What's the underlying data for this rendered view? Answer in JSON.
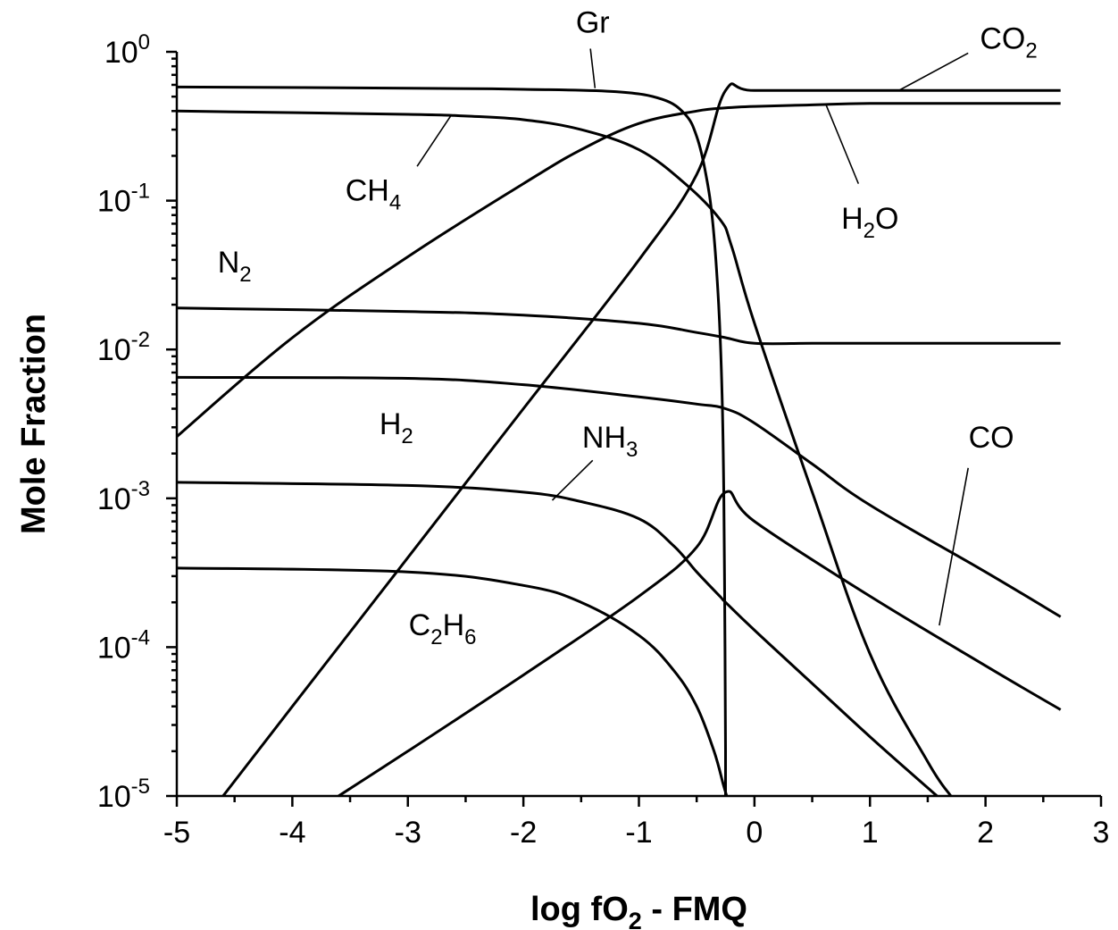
{
  "chart_data": {
    "type": "line",
    "xlabel": "log fO2 - FMQ",
    "xlabel_parts": {
      "pre": "log fO",
      "sub": "2",
      "post": " - FMQ"
    },
    "ylabel": "Mole Fraction",
    "xlim": [
      -5,
      3
    ],
    "ylim": [
      1e-05,
      1
    ],
    "yscale": "log",
    "grid": false,
    "x_ticks": [
      -5,
      -4,
      -3,
      -2,
      -1,
      0,
      1,
      2,
      3
    ],
    "x_tick_labels": [
      "-5",
      "-4",
      "-3",
      "-2",
      "-1",
      "0",
      "1",
      "2",
      "3"
    ],
    "y_ticks": [
      {
        "value": 1.0,
        "base": "10",
        "exp": "0"
      },
      {
        "value": 0.1,
        "base": "10",
        "exp": "-1"
      },
      {
        "value": 0.01,
        "base": "10",
        "exp": "-2"
      },
      {
        "value": 0.001,
        "base": "10",
        "exp": "-3"
      },
      {
        "value": 0.0001,
        "base": "10",
        "exp": "-4"
      },
      {
        "value": 1e-05,
        "base": "10",
        "exp": "-5"
      }
    ],
    "series": [
      {
        "name": "Gr",
        "label_parts": [
          {
            "t": "Gr",
            "sub": false
          }
        ],
        "x": [
          -5,
          -3,
          -2,
          -1.2,
          -0.8,
          -0.6,
          -0.5,
          -0.42,
          -0.36,
          -0.31,
          -0.28,
          -0.265,
          -0.255,
          -0.25,
          -0.25
        ],
        "y": [
          0.58,
          0.57,
          0.56,
          0.54,
          0.48,
          0.38,
          0.27,
          0.15,
          0.07,
          0.02,
          0.005,
          0.001,
          0.0001,
          2e-05,
          1e-05
        ]
      },
      {
        "name": "CO2",
        "label_parts": [
          {
            "t": "CO",
            "sub": false
          },
          {
            "t": "2",
            "sub": true
          }
        ],
        "x": [
          -4.6,
          -4,
          -3,
          -2,
          -1,
          -0.5,
          -0.25,
          0,
          1,
          2,
          2.65
        ],
        "y": [
          1e-05,
          4e-05,
          0.0004,
          0.004,
          0.04,
          0.15,
          0.55,
          0.55,
          0.55,
          0.55,
          0.55
        ]
      },
      {
        "name": "CH4",
        "label_parts": [
          {
            "t": "CH",
            "sub": false
          },
          {
            "t": "4",
            "sub": true
          }
        ],
        "x": [
          -5,
          -3,
          -2.5,
          -2,
          -1.5,
          -1,
          -0.6,
          -0.3,
          -0.2,
          0,
          0.5,
          1,
          1.5,
          1.7
        ],
        "y": [
          0.4,
          0.38,
          0.37,
          0.35,
          0.3,
          0.22,
          0.13,
          0.075,
          0.05,
          0.015,
          0.0011,
          9e-05,
          1.7e-05,
          1e-05
        ]
      },
      {
        "name": "H2O",
        "label_parts": [
          {
            "t": "H",
            "sub": false
          },
          {
            "t": "2",
            "sub": true
          },
          {
            "t": "O",
            "sub": false
          }
        ],
        "x": [
          -5,
          -4,
          -3,
          -2,
          -1.5,
          -1,
          -0.5,
          -0.25,
          0,
          0.5,
          1,
          2,
          2.65
        ],
        "y": [
          0.0026,
          0.012,
          0.042,
          0.13,
          0.22,
          0.33,
          0.4,
          0.42,
          0.43,
          0.44,
          0.45,
          0.45,
          0.45
        ]
      },
      {
        "name": "N2",
        "label_parts": [
          {
            "t": "N",
            "sub": false
          },
          {
            "t": "2",
            "sub": true
          }
        ],
        "x": [
          -5,
          -3,
          -2,
          -1,
          -0.5,
          -0.25,
          0,
          0.5,
          1,
          2,
          2.65
        ],
        "y": [
          0.019,
          0.018,
          0.017,
          0.015,
          0.013,
          0.012,
          0.011,
          0.011,
          0.011,
          0.011,
          0.011
        ]
      },
      {
        "name": "H2",
        "label_parts": [
          {
            "t": "H",
            "sub": false
          },
          {
            "t": "2",
            "sub": true
          }
        ],
        "x": [
          -5,
          -3,
          -2,
          -1,
          -0.5,
          -0.25,
          0,
          0.5,
          1,
          2,
          2.65
        ],
        "y": [
          0.0065,
          0.0064,
          0.0058,
          0.0048,
          0.0043,
          0.004,
          0.0032,
          0.0017,
          0.0009,
          0.00032,
          0.00016
        ]
      },
      {
        "name": "NH3",
        "label_parts": [
          {
            "t": "NH",
            "sub": false
          },
          {
            "t": "3",
            "sub": true
          }
        ],
        "x": [
          -5,
          -3,
          -2,
          -1.5,
          -1,
          -0.7,
          -0.5,
          -0.3,
          -0.25,
          0,
          0.5,
          1,
          1.58
        ],
        "y": [
          0.00128,
          0.00122,
          0.0011,
          0.00095,
          0.00073,
          0.00048,
          0.00032,
          0.00022,
          0.0002,
          0.00013,
          5.7e-05,
          2.5e-05,
          1e-05
        ]
      },
      {
        "name": "CO",
        "label_parts": [
          {
            "t": "CO",
            "sub": false
          }
        ],
        "x": [
          -3.6,
          -3,
          -2,
          -1,
          -0.5,
          -0.25,
          0,
          1,
          2,
          2.65
        ],
        "y": [
          1e-05,
          2e-05,
          6.5e-05,
          0.00022,
          0.00047,
          0.0011,
          0.0007,
          0.00022,
          7.5e-05,
          3.8e-05
        ]
      },
      {
        "name": "C2H6",
        "label_parts": [
          {
            "t": "C",
            "sub": false
          },
          {
            "t": "2",
            "sub": true
          },
          {
            "t": "H",
            "sub": false
          },
          {
            "t": "6",
            "sub": true
          }
        ],
        "x": [
          -5,
          -3,
          -2,
          -1.5,
          -1,
          -0.7,
          -0.5,
          -0.35,
          -0.27,
          -0.24
        ],
        "y": [
          0.00034,
          0.00032,
          0.00026,
          0.0002,
          0.00012,
          7e-05,
          4e-05,
          2e-05,
          1.2e-05,
          1e-05
        ]
      }
    ],
    "annotations": [
      {
        "series": "Gr",
        "label_x": -1.4,
        "label_y": 1.35,
        "point_x": -1.38,
        "point_y": 0.57,
        "leader_from": [
          -1.42,
          1.05
        ]
      },
      {
        "series": "CO2",
        "label_x": 2.2,
        "label_y": 1.05,
        "point_x": 1.25,
        "point_y": 0.55,
        "leader_from": [
          1.85,
          0.98
        ]
      },
      {
        "series": "CH4",
        "label_x": -3.3,
        "label_y": 0.1,
        "point_x": -2.63,
        "point_y": 0.37,
        "leader_from": [
          -2.92,
          0.17
        ]
      },
      {
        "series": "H2O",
        "label_x": 1.0,
        "label_y": 0.065,
        "point_x": 0.62,
        "point_y": 0.44,
        "leader_from": [
          0.9,
          0.13
        ]
      },
      {
        "series": "N2",
        "label_x": -4.5,
        "label_y": 0.033,
        "point_x": null,
        "point_y": null,
        "leader_from": null
      },
      {
        "series": "H2",
        "label_x": -3.1,
        "label_y": 0.0027,
        "point_x": null,
        "point_y": null,
        "leader_from": null
      },
      {
        "series": "NH3",
        "label_x": -1.25,
        "label_y": 0.0022,
        "point_x": -1.75,
        "point_y": 0.00097,
        "leader_from": [
          -1.4,
          0.0018
        ]
      },
      {
        "series": "CO",
        "label_x": 2.05,
        "label_y": 0.0022,
        "point_x": 1.6,
        "point_y": 0.00014,
        "leader_from": [
          1.85,
          0.0016
        ]
      },
      {
        "series": "C2H6",
        "label_x": -2.7,
        "label_y": 0.00012,
        "point_x": null,
        "point_y": null,
        "leader_from": null
      }
    ]
  }
}
